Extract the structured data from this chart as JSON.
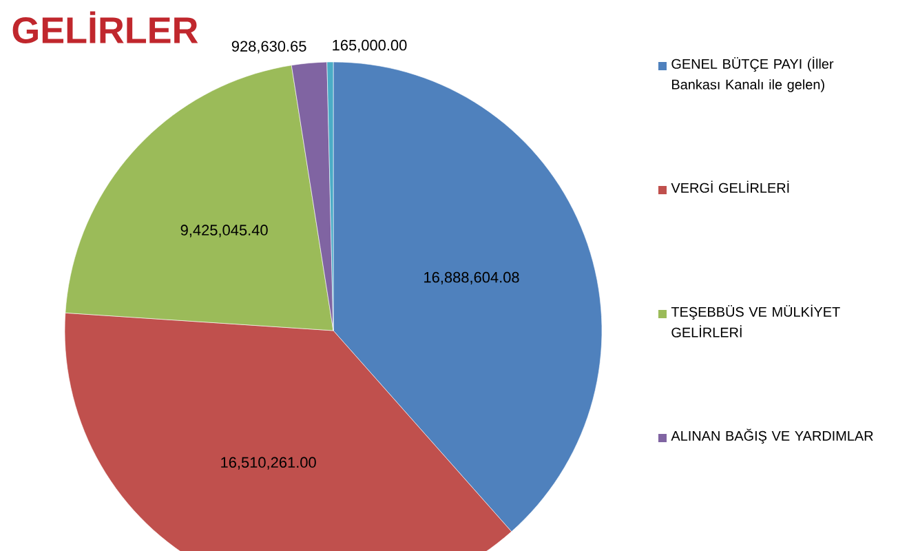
{
  "chart_data": {
    "type": "pie",
    "title": "GELİRLER",
    "legend": "right",
    "categories": [
      "GENEL BÜTÇE PAYI (İller Bankası Kanalı ile gelen)",
      "VERGİ GELİRLERİ",
      "TEŞEBBÜS  VE MÜLKİYET GELİRLERİ",
      "ALINAN BAĞIŞ VE YARDIMLAR",
      null
    ],
    "values": [
      16888604.08,
      16510261.0,
      9425045.4,
      928630.65,
      165000.0
    ],
    "value_labels": [
      "16,888,604.08",
      "16,510,261.00",
      "9,425,045.40",
      "928,630.65",
      "165,000.00"
    ],
    "colors": [
      "#4f81bd",
      "#c0504d",
      "#9bbb59",
      "#8064a2",
      "#4bacc6"
    ]
  }
}
